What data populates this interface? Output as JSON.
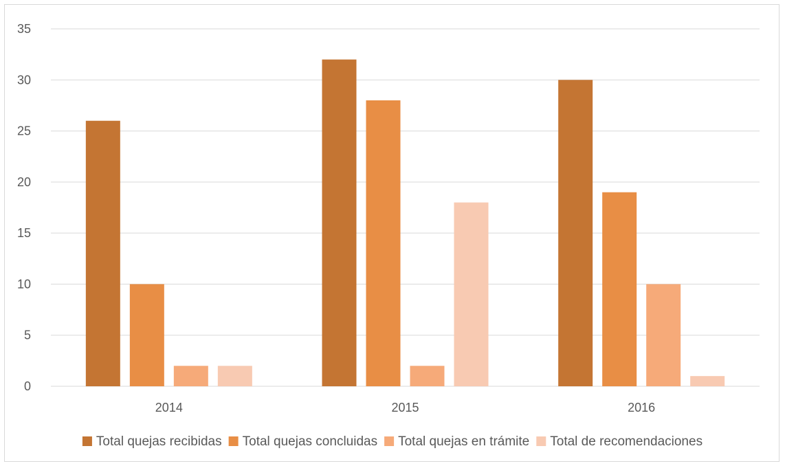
{
  "chart_data": {
    "type": "bar",
    "title": "",
    "xlabel": "",
    "ylabel": "",
    "categories": [
      "2014",
      "2015",
      "2016"
    ],
    "series": [
      {
        "name": "Total quejas recibidas",
        "values": [
          26,
          32,
          30
        ],
        "color": "#c47533"
      },
      {
        "name": "Total quejas concluidas",
        "values": [
          10,
          28,
          19
        ],
        "color": "#e88e45"
      },
      {
        "name": "Total quejas en trámite",
        "values": [
          2,
          2,
          10
        ],
        "color": "#f6aa79"
      },
      {
        "name": "Total de recomendaciones",
        "values": [
          2,
          18,
          1
        ],
        "color": "#f8cab2"
      }
    ],
    "ylim": [
      0,
      35
    ],
    "yticks": [
      "0",
      "5",
      "10",
      "15",
      "20",
      "25",
      "30",
      "35"
    ],
    "grid": true,
    "legend_position": "bottom",
    "gridline_color": "#d9d9d9",
    "text_color": "#595959"
  }
}
